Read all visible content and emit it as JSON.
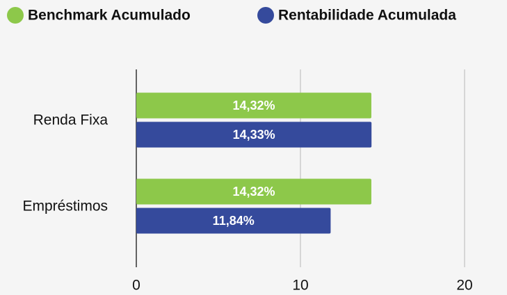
{
  "chart_data": {
    "type": "bar",
    "orientation": "horizontal",
    "categories": [
      "Renda Fixa",
      "Empréstimos"
    ],
    "series": [
      {
        "name": "Benchmark Acumulado",
        "color": "#8dc84a",
        "values": [
          14.32,
          14.32
        ],
        "value_labels": [
          "14,32%",
          "14,32%"
        ]
      },
      {
        "name": "Rentabilidade Acumulada",
        "color": "#354a9c",
        "values": [
          14.33,
          11.84
        ],
        "value_labels": [
          "14,33%",
          "11,84%"
        ]
      }
    ],
    "xlim": [
      0,
      20
    ],
    "xticks": [
      0,
      10,
      20
    ],
    "grid": true,
    "legend": "top"
  }
}
